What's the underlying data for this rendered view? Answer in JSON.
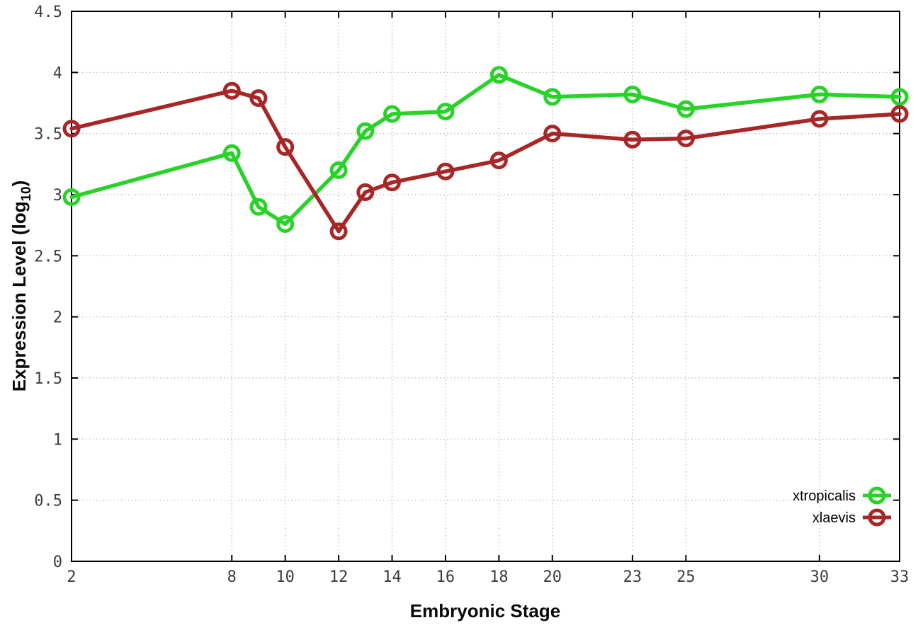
{
  "chart_data": {
    "type": "line",
    "title": "",
    "xlabel": "Embryonic Stage",
    "ylabel": {
      "main": "Expression Level (log",
      "sub": "10",
      "end": ")"
    },
    "xlim": [
      2,
      33
    ],
    "ylim": [
      0,
      4.5
    ],
    "xticks": [
      2,
      8,
      10,
      12,
      14,
      16,
      18,
      20,
      23,
      25,
      30,
      33
    ],
    "yticks": [
      0,
      0.5,
      1,
      1.5,
      2,
      2.5,
      3,
      3.5,
      4,
      4.5
    ],
    "ytick_labels": [
      "0",
      "0.5",
      "1",
      "1.5",
      "2",
      "2.5",
      "3",
      "3.5",
      "4",
      "4.5"
    ],
    "grid": true,
    "legend_position": "inside-bottom-right",
    "marker": "open-circle",
    "x": [
      2,
      8,
      9,
      10,
      12,
      13,
      14,
      16,
      18,
      20,
      23,
      25,
      30,
      33
    ],
    "series": [
      {
        "name": "xtropicalis",
        "color": "#27d327",
        "values": [
          2.98,
          3.34,
          2.9,
          2.76,
          3.2,
          3.52,
          3.66,
          3.68,
          3.98,
          3.8,
          3.82,
          3.7,
          3.82,
          3.8
        ]
      },
      {
        "name": "xlaevis",
        "color": "#a82626",
        "values": [
          3.54,
          3.85,
          3.79,
          3.39,
          2.7,
          3.02,
          3.1,
          3.19,
          3.28,
          3.5,
          3.45,
          3.46,
          3.62,
          3.66
        ]
      }
    ],
    "styles": {
      "background": "#ffffff",
      "grid_color": "#b3b3b3",
      "axis_color": "#000000",
      "tick_label_color": "#3d3d3d"
    }
  }
}
